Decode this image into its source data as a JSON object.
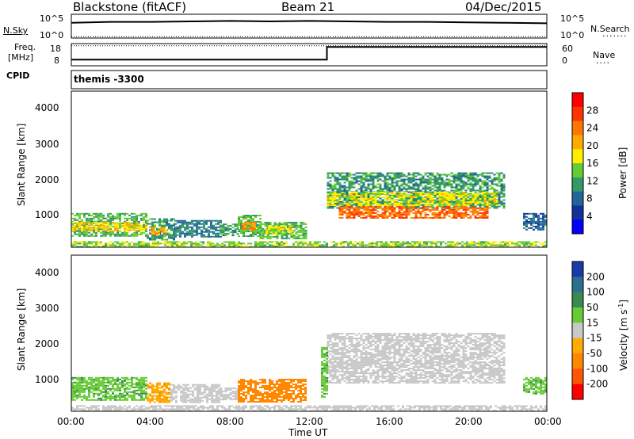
{
  "header": {
    "station": "Blackstone (fitACF)",
    "beam": "Beam 21",
    "date": "04/Dec/2015"
  },
  "nsky_panel": {
    "left_label": "N.Sky",
    "right_label": "N.Search",
    "left_ticks": [
      "10^5",
      "10^0"
    ],
    "right_ticks": [
      "10^5",
      "10^0"
    ]
  },
  "freq_panel": {
    "left_label_line1": "Freq.",
    "left_label_line2": "[MHz]",
    "right_label": "Nave",
    "left_ticks": [
      "18",
      "8"
    ],
    "right_ticks": [
      "60",
      "0"
    ]
  },
  "cpid_panel": {
    "label": "CPID",
    "value": "themis -3300"
  },
  "power_panel": {
    "ylabel": "Slant Range [km]",
    "yticks": [
      "4000",
      "3000",
      "2000",
      "1000"
    ],
    "colorbar_label": "Power [dB]",
    "colorbar_ticks": [
      "28",
      "24",
      "20",
      "16",
      "12",
      "8",
      "4"
    ],
    "colorbar_colors": [
      "#ff0000",
      "#ff3300",
      "#ff7700",
      "#ffaa00",
      "#ffee00",
      "#66cc33",
      "#339966",
      "#226699",
      "#113399",
      "#0000ff"
    ]
  },
  "velocity_panel": {
    "ylabel": "Slant Range [km]",
    "yticks": [
      "4000",
      "3000",
      "2000",
      "1000"
    ],
    "colorbar_label": "Velocity [m s^-1]",
    "colorbar_ticks": [
      "200",
      "100",
      "50",
      "15",
      "-15",
      "-50",
      "-100",
      "-200"
    ],
    "colorbar_colors": [
      "#1a3aa8",
      "#2b6f8f",
      "#3a8a50",
      "#66cc33",
      "#c8c8c8",
      "#ffaa00",
      "#ff8800",
      "#ff5500",
      "#ff0000"
    ]
  },
  "xaxis": {
    "label": "Time UT",
    "ticks": [
      "00:00",
      "04:00",
      "08:00",
      "12:00",
      "16:00",
      "20:00",
      "00:00"
    ]
  },
  "chart_data": [
    {
      "type": "line",
      "title": "N.Sky / N.Search",
      "series": [
        {
          "name": "N.Sky",
          "x": [
            0,
            2,
            4,
            6,
            8,
            10,
            12,
            14,
            16,
            18,
            20,
            22,
            24
          ],
          "y": [
            3.2,
            3.4,
            3.4,
            3.5,
            3.6,
            3.5,
            3.6,
            3.5,
            3.4,
            3.4,
            3.3,
            3.2,
            3.1
          ]
        },
        {
          "name": "N.Search",
          "x": [
            0,
            4,
            8,
            12,
            16,
            20,
            24
          ],
          "y": [
            0.3,
            0.3,
            0.3,
            0.3,
            0.3,
            0.3,
            0.3
          ]
        }
      ],
      "ylim": [
        0,
        5
      ]
    },
    {
      "type": "line",
      "title": "Freq. / Nave",
      "series": [
        {
          "name": "Freq.",
          "x": [
            0,
            12.9,
            12.9,
            24
          ],
          "y": [
            10.8,
            10.8,
            16.5,
            16.5
          ]
        },
        {
          "name": "Nave",
          "x": [
            0,
            24
          ],
          "y": [
            17,
            17
          ]
        }
      ],
      "ylim": [
        8,
        18
      ]
    },
    {
      "type": "heatmap",
      "title": "Power [dB]",
      "xlabel": "Time UT",
      "ylabel": "Slant Range [km]",
      "xlim": [
        0,
        24
      ],
      "ylim": [
        180,
        4600
      ],
      "clim": [
        0,
        30
      ],
      "regions": [
        {
          "t0": 0.0,
          "t1": 3.8,
          "r0": 500,
          "r1": 1150,
          "level": 12
        },
        {
          "t0": 0.0,
          "t1": 3.8,
          "r0": 650,
          "r1": 900,
          "level": 18
        },
        {
          "t0": 3.8,
          "t1": 5.2,
          "r0": 400,
          "r1": 1000,
          "level": 10
        },
        {
          "t0": 4.0,
          "t1": 4.8,
          "r0": 550,
          "r1": 750,
          "level": 20
        },
        {
          "t0": 5.2,
          "t1": 7.5,
          "r0": 500,
          "r1": 950,
          "level": 8
        },
        {
          "t0": 7.5,
          "t1": 8.4,
          "r0": 500,
          "r1": 850,
          "level": 10
        },
        {
          "t0": 8.4,
          "t1": 9.5,
          "r0": 500,
          "r1": 1100,
          "level": 12
        },
        {
          "t0": 8.6,
          "t1": 9.3,
          "r0": 650,
          "r1": 900,
          "level": 22
        },
        {
          "t0": 9.5,
          "t1": 11.8,
          "r0": 450,
          "r1": 900,
          "level": 12
        },
        {
          "t0": 9.8,
          "t1": 11.2,
          "r0": 550,
          "r1": 800,
          "level": 16
        },
        {
          "t0": 12.9,
          "t1": 21.8,
          "r0": 1300,
          "r1": 2300,
          "level": 10
        },
        {
          "t0": 12.9,
          "t1": 21.5,
          "r0": 1350,
          "r1": 1750,
          "level": 16
        },
        {
          "t0": 13.5,
          "t1": 21.0,
          "r0": 1000,
          "r1": 1350,
          "level": 24
        },
        {
          "t0": 22.8,
          "t1": 24.0,
          "r0": 700,
          "r1": 1150,
          "level": 6
        },
        {
          "t0": 0.0,
          "t1": 24.0,
          "r0": 200,
          "r1": 350,
          "level": 14
        }
      ]
    },
    {
      "type": "heatmap",
      "title": "Velocity [m s^-1]",
      "xlabel": "Time UT",
      "ylabel": "Slant Range [km]",
      "xlim": [
        0,
        24
      ],
      "ylim": [
        180,
        4600
      ],
      "clim": [
        -250,
        250
      ],
      "regions": [
        {
          "t0": 0.0,
          "t1": 3.8,
          "r0": 500,
          "r1": 1150,
          "level": 30
        },
        {
          "t0": 3.8,
          "t1": 5.0,
          "r0": 450,
          "r1": 1000,
          "level": -30
        },
        {
          "t0": 5.0,
          "t1": 7.5,
          "r0": 450,
          "r1": 950,
          "level": 0
        },
        {
          "t0": 7.5,
          "t1": 8.4,
          "r0": 500,
          "r1": 850,
          "level": 0
        },
        {
          "t0": 8.4,
          "t1": 11.8,
          "r0": 450,
          "r1": 1100,
          "level": -40
        },
        {
          "t0": 12.9,
          "t1": 21.8,
          "r0": 1000,
          "r1": 2400,
          "level": 0
        },
        {
          "t0": 12.6,
          "t1": 12.9,
          "r0": 600,
          "r1": 2000,
          "level": 30
        },
        {
          "t0": 22.8,
          "t1": 24.0,
          "r0": 700,
          "r1": 1150,
          "level": 30
        },
        {
          "t0": 0.0,
          "t1": 24.0,
          "r0": 200,
          "r1": 350,
          "level": 0
        }
      ]
    }
  ]
}
